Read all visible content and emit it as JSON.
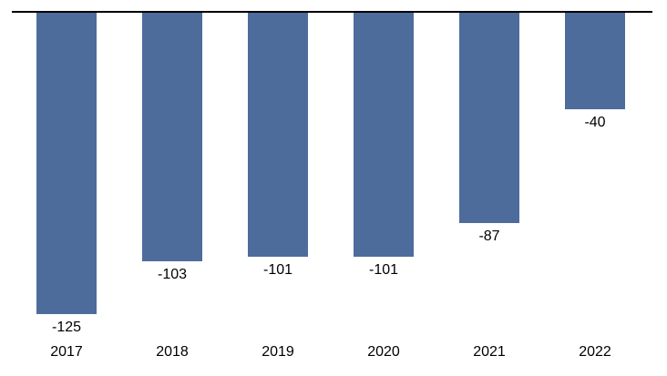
{
  "chart_data": {
    "type": "bar",
    "title": "",
    "xlabel": "",
    "ylabel": "",
    "categories": [
      "2017",
      "2018",
      "2019",
      "2020",
      "2021",
      "2022"
    ],
    "values": [
      -125,
      -103,
      -101,
      -101,
      -87,
      -40
    ],
    "data_labels": [
      "-125",
      "-103",
      "-101",
      "-101",
      "-87",
      "-40"
    ],
    "ylim": [
      -140,
      0
    ],
    "baseline": 0,
    "grid": false,
    "legend_position": "none",
    "orientation": "vertical",
    "colors": {
      "bar_fill": "#4D6C9C",
      "axis_line": "#000000",
      "label_text": "#000000",
      "background": "#ffffff"
    }
  }
}
